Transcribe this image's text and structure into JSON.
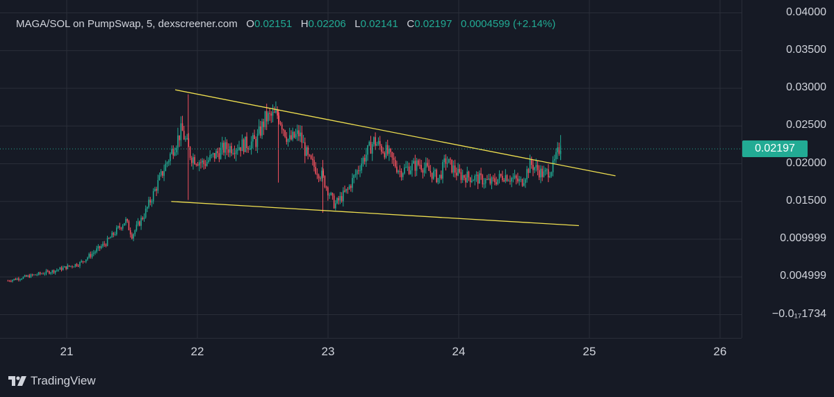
{
  "legend": {
    "symbol": "MAGA/SOL on PumpSwap, 5, dexscreener.com",
    "o_label": "O",
    "o_value": "0.02151",
    "h_label": "H",
    "h_value": "0.02206",
    "l_label": "L",
    "l_value": "0.02141",
    "c_label": "C",
    "c_value": "0.02197",
    "change": "0.0004599 (+2.14%)"
  },
  "last_price": "0.02197",
  "price_ticks": [
    "0.04000",
    "0.03500",
    "0.03000",
    "0.02500",
    "0.02000",
    "0.01500",
    "0.009999",
    "0.004999",
    "−0.0₁₇1734"
  ],
  "time_ticks": [
    "21",
    "22",
    "23",
    "24",
    "25",
    "26"
  ],
  "branding": "TradingView",
  "colors": {
    "up": "#22ab94",
    "down": "#f7525f",
    "trendline": "#f0e050",
    "background": "#161a25",
    "grid": "#2a2e39"
  },
  "chart_data": {
    "type": "candlestick",
    "title": "MAGA/SOL on PumpSwap, 5, dexscreener.com",
    "ylim": [
      -0.0045,
      0.0405
    ],
    "xlim": [
      20.55,
      26.17
    ],
    "last_close": 0.02197,
    "price_path": [
      {
        "x": 20.55,
        "y": 0.0045
      },
      {
        "x": 20.9,
        "y": 0.0058
      },
      {
        "x": 21.1,
        "y": 0.0068
      },
      {
        "x": 21.3,
        "y": 0.0095
      },
      {
        "x": 21.45,
        "y": 0.0125
      },
      {
        "x": 21.5,
        "y": 0.0105
      },
      {
        "x": 21.6,
        "y": 0.0135
      },
      {
        "x": 21.7,
        "y": 0.0175
      },
      {
        "x": 21.8,
        "y": 0.0215
      },
      {
        "x": 21.88,
        "y": 0.0245
      },
      {
        "x": 21.95,
        "y": 0.021
      },
      {
        "x": 22.05,
        "y": 0.02
      },
      {
        "x": 22.2,
        "y": 0.022
      },
      {
        "x": 22.35,
        "y": 0.0225
      },
      {
        "x": 22.45,
        "y": 0.023
      },
      {
        "x": 22.52,
        "y": 0.026
      },
      {
        "x": 22.62,
        "y": 0.0265
      },
      {
        "x": 22.7,
        "y": 0.023
      },
      {
        "x": 22.78,
        "y": 0.024
      },
      {
        "x": 22.85,
        "y": 0.0205
      },
      {
        "x": 22.95,
        "y": 0.0185
      },
      {
        "x": 23.05,
        "y": 0.0145
      },
      {
        "x": 23.15,
        "y": 0.0165
      },
      {
        "x": 23.25,
        "y": 0.02
      },
      {
        "x": 23.35,
        "y": 0.023
      },
      {
        "x": 23.45,
        "y": 0.0215
      },
      {
        "x": 23.55,
        "y": 0.019
      },
      {
        "x": 23.7,
        "y": 0.02
      },
      {
        "x": 23.85,
        "y": 0.018
      },
      {
        "x": 23.9,
        "y": 0.0205
      },
      {
        "x": 24.0,
        "y": 0.0185
      },
      {
        "x": 24.15,
        "y": 0.018
      },
      {
        "x": 24.25,
        "y": 0.0175
      },
      {
        "x": 24.35,
        "y": 0.0185
      },
      {
        "x": 24.48,
        "y": 0.0175
      },
      {
        "x": 24.55,
        "y": 0.02
      },
      {
        "x": 24.65,
        "y": 0.0185
      },
      {
        "x": 24.72,
        "y": 0.0195
      },
      {
        "x": 24.78,
        "y": 0.0225
      }
    ],
    "trendlines": [
      {
        "name": "upper",
        "x": [
          21.83,
          25.2
        ],
        "y": [
          0.0298,
          0.0184
        ]
      },
      {
        "name": "lower",
        "x": [
          21.8,
          24.92
        ],
        "y": [
          0.015,
          0.0118
        ]
      }
    ]
  }
}
